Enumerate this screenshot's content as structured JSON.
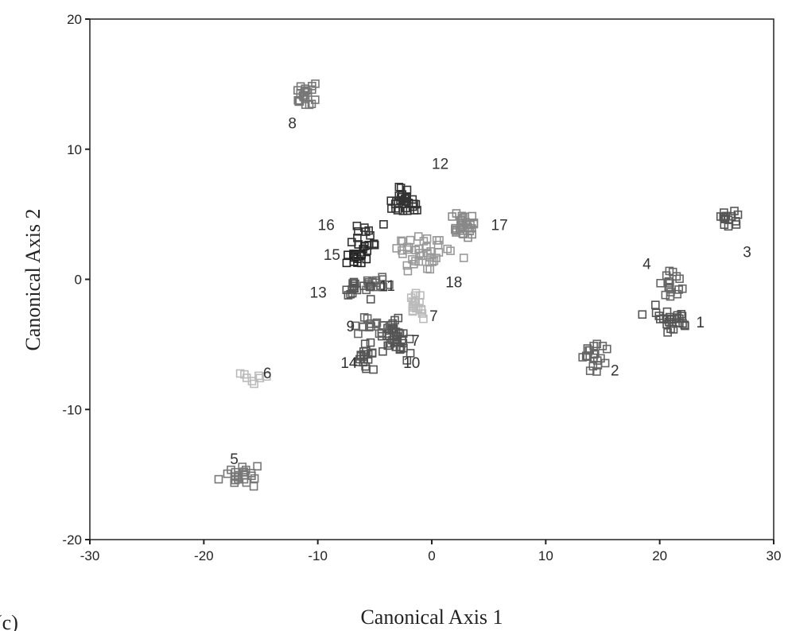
{
  "panel_label": "(c)",
  "chart_data": {
    "type": "scatter",
    "title": "",
    "xlabel": "Canonical Axis 1",
    "ylabel": "Canonical Axis 2",
    "xlim": [
      -30,
      30
    ],
    "ylim": [
      -20,
      20
    ],
    "xticks": [
      -30,
      -20,
      -10,
      0,
      10,
      20,
      30
    ],
    "yticks": [
      -20,
      -10,
      0,
      10,
      20
    ],
    "xtick_labels": [
      "-30",
      "-20",
      "-10",
      "0",
      "10",
      "20",
      "30"
    ],
    "ytick_labels": [
      "-20",
      "-10",
      "0",
      "10",
      "20"
    ],
    "grid": false,
    "marker": "open-square",
    "clusters": [
      {
        "label": "1",
        "center": [
          21,
          -3.2
        ],
        "spread": [
          1.6,
          0.9
        ],
        "n": 26,
        "color": "#555555"
      },
      {
        "label": "2",
        "center": [
          14,
          -5.8
        ],
        "spread": [
          1.0,
          1.0
        ],
        "n": 20,
        "color": "#666666"
      },
      {
        "label": "3",
        "center": [
          26.3,
          4.6
        ],
        "spread": [
          0.9,
          0.5
        ],
        "n": 14,
        "color": "#555555"
      },
      {
        "label": "4",
        "center": [
          21,
          -0.5
        ],
        "spread": [
          0.8,
          1.0
        ],
        "n": 16,
        "color": "#666666"
      },
      {
        "label": "5",
        "center": [
          -16.8,
          -15
        ],
        "spread": [
          1.5,
          0.6
        ],
        "n": 22,
        "color": "#777777"
      },
      {
        "label": "6",
        "center": [
          -15.5,
          -7.5
        ],
        "spread": [
          1.0,
          0.5
        ],
        "n": 8,
        "color": "#bbbbbb"
      },
      {
        "label": "7",
        "center": [
          -3.5,
          -4.3
        ],
        "spread": [
          1.2,
          0.9
        ],
        "n": 30,
        "color": "#555555"
      },
      {
        "label": "7",
        "center": [
          -1.3,
          -2.0
        ],
        "spread": [
          0.6,
          0.8
        ],
        "n": 18,
        "color": "#bbbbbb"
      },
      {
        "label": "8",
        "center": [
          -10.8,
          14
        ],
        "spread": [
          0.9,
          0.7
        ],
        "n": 22,
        "color": "#777777"
      },
      {
        "label": "9",
        "center": [
          -5.5,
          -3.5
        ],
        "spread": [
          1.0,
          0.7
        ],
        "n": 14,
        "color": "#666666"
      },
      {
        "label": "10",
        "center": [
          -2.5,
          -5.2
        ],
        "spread": [
          0.9,
          0.7
        ],
        "n": 14,
        "color": "#555555"
      },
      {
        "label": "11",
        "center": [
          -4.8,
          -0.3
        ],
        "spread": [
          1.0,
          0.6
        ],
        "n": 14,
        "color": "#666666"
      },
      {
        "label": "12",
        "center": [
          -2.5,
          6.0
        ],
        "spread": [
          1.2,
          0.8
        ],
        "n": 32,
        "color": "#333333"
      },
      {
        "label": "13",
        "center": [
          -6.5,
          -0.8
        ],
        "spread": [
          0.9,
          0.6
        ],
        "n": 16,
        "color": "#555555"
      },
      {
        "label": "14",
        "center": [
          -5.8,
          -6.0
        ],
        "spread": [
          0.9,
          0.8
        ],
        "n": 18,
        "color": "#555555"
      },
      {
        "label": "15",
        "center": [
          -6.8,
          1.8
        ],
        "spread": [
          1.0,
          0.7
        ],
        "n": 18,
        "color": "#222222"
      },
      {
        "label": "16",
        "center": [
          -6.0,
          3.0
        ],
        "spread": [
          1.2,
          1.3
        ],
        "n": 14,
        "color": "#333333"
      },
      {
        "label": "17",
        "center": [
          2.6,
          4.0
        ],
        "spread": [
          1.0,
          0.9
        ],
        "n": 30,
        "color": "#888888"
      },
      {
        "label": "18",
        "center": [
          -0.5,
          2.0
        ],
        "spread": [
          2.2,
          1.2
        ],
        "n": 40,
        "color": "#999999"
      }
    ],
    "annotations": [
      {
        "text": "1",
        "x": 23.2,
        "y": -3.7
      },
      {
        "text": "2",
        "x": 15.7,
        "y": -7.4
      },
      {
        "text": "3",
        "x": 27.3,
        "y": 1.7
      },
      {
        "text": "4",
        "x": 18.5,
        "y": 0.8
      },
      {
        "text": "5",
        "x": -17.7,
        "y": -14.2
      },
      {
        "text": "6",
        "x": -14.8,
        "y": -7.6
      },
      {
        "text": "7",
        "x": -1.8,
        "y": -5.1
      },
      {
        "text": "7",
        "x": -0.2,
        "y": -3.2
      },
      {
        "text": "8",
        "x": -12.6,
        "y": 11.6
      },
      {
        "text": "9",
        "x": -7.5,
        "y": -4.0
      },
      {
        "text": "10",
        "x": -2.5,
        "y": -6.8
      },
      {
        "text": "11",
        "x": -4.6,
        "y": -0.9
      },
      {
        "text": "12",
        "x": 0,
        "y": 8.5
      },
      {
        "text": "13",
        "x": -10.7,
        "y": -1.4
      },
      {
        "text": "14",
        "x": -8.0,
        "y": -6.8
      },
      {
        "text": "15",
        "x": -9.5,
        "y": 1.5
      },
      {
        "text": "16",
        "x": -10.0,
        "y": 3.8
      },
      {
        "text": "17",
        "x": 5.2,
        "y": 3.8
      },
      {
        "text": "18",
        "x": 1.2,
        "y": -0.6
      }
    ]
  }
}
